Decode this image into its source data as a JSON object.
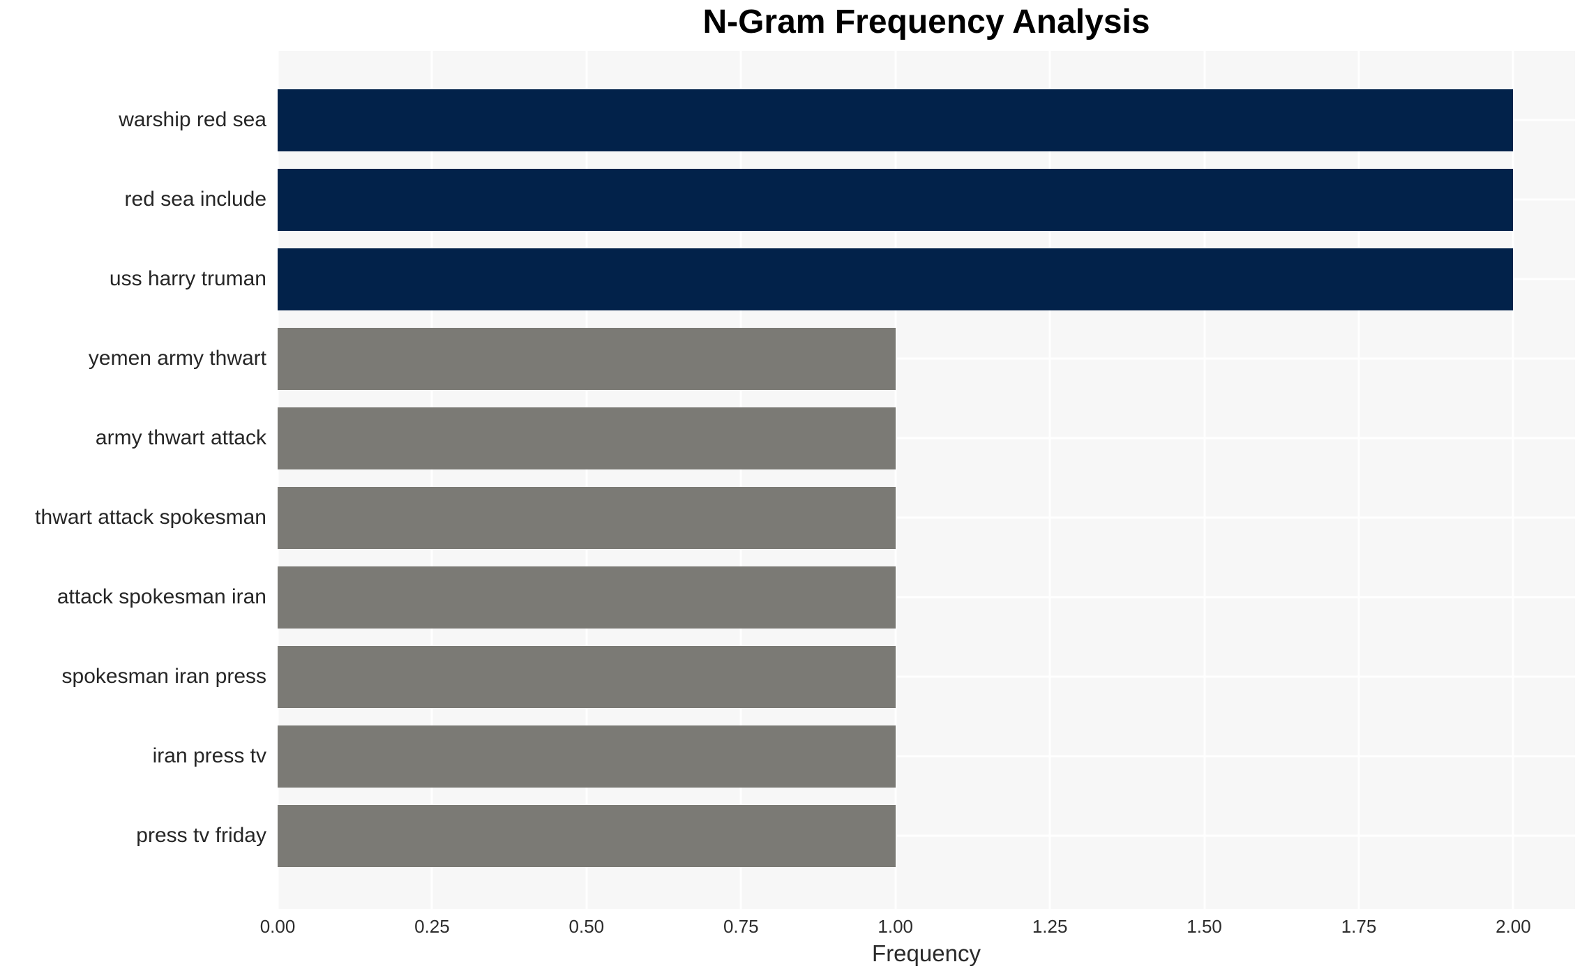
{
  "chart_data": {
    "type": "bar",
    "orientation": "horizontal",
    "title": "N-Gram Frequency Analysis",
    "xlabel": "Frequency",
    "ylabel": "",
    "categories": [
      "warship red sea",
      "red sea include",
      "uss harry truman",
      "yemen army thwart",
      "army thwart attack",
      "thwart attack spokesman",
      "attack spokesman iran",
      "spokesman iran press",
      "iran press tv",
      "press tv friday"
    ],
    "values": [
      2,
      2,
      2,
      1,
      1,
      1,
      1,
      1,
      1,
      1
    ],
    "bar_colors": [
      "#02224a",
      "#02224a",
      "#02224a",
      "#7b7a75",
      "#7b7a75",
      "#7b7a75",
      "#7b7a75",
      "#7b7a75",
      "#7b7a75",
      "#7b7a75"
    ],
    "xlim": [
      0,
      2.1
    ],
    "xtick_values": [
      0,
      0.25,
      0.5,
      0.75,
      1.0,
      1.25,
      1.5,
      1.75,
      2.0
    ],
    "xtick_labels": [
      "0.00",
      "0.25",
      "0.50",
      "0.75",
      "1.00",
      "1.25",
      "1.50",
      "1.75",
      "2.00"
    ],
    "grid": true,
    "legend": false,
    "colors": {
      "bar_high": "#02224a",
      "bar_low": "#7b7a75",
      "plot_background": "#f7f7f7",
      "gridline": "#ffffff",
      "tick_text": "#2d2d2d",
      "label_text": "#262626",
      "title_text": "#000000"
    }
  }
}
